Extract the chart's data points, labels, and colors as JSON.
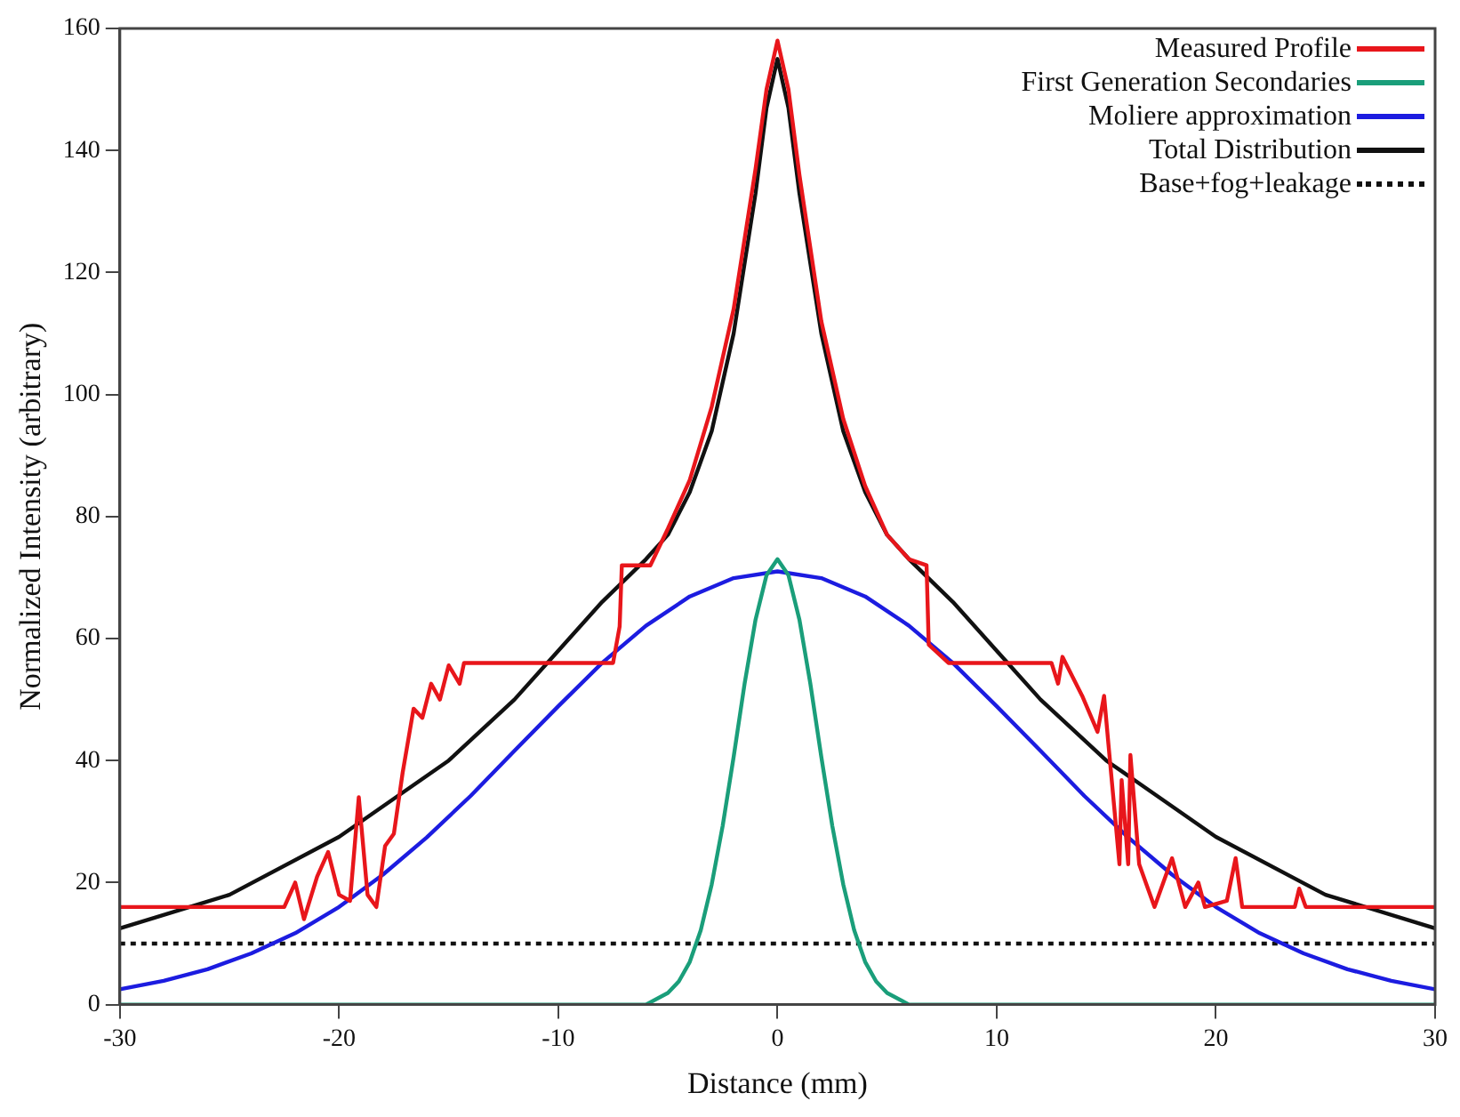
{
  "chart_data": {
    "type": "line",
    "xlabel": "Distance (mm)",
    "ylabel": "Normalized Intensity (arbitrary)",
    "xlim": [
      -30,
      30
    ],
    "xticks": [
      -30,
      -20,
      -10,
      0,
      10,
      20,
      30
    ],
    "ylim": [
      0,
      160
    ],
    "yticks": [
      0,
      20,
      40,
      60,
      80,
      100,
      120,
      140,
      160
    ],
    "grid": false,
    "legend": "top right",
    "marker": "none",
    "series": [
      {
        "name": "Measured Profile",
        "color": "#e8161b",
        "line_style": "solid",
        "x": [
          -30,
          -22.5,
          -22,
          -21.6,
          -21,
          -20.5,
          -20,
          -19.5,
          -19.1,
          -18.7,
          -18.3,
          -17.9,
          -17.5,
          -17.1,
          -16.6,
          -16.2,
          -15.8,
          -15.4,
          -15,
          -14.5,
          -14.3,
          -7.5,
          -7.2,
          -7.1,
          -5.8,
          -5,
          -4,
          -3,
          -2,
          -1,
          -0.5,
          0,
          0.5,
          1,
          2,
          3,
          4,
          5,
          6,
          6.8,
          6.9,
          7.8,
          12.5,
          12.8,
          13,
          13.9,
          14.6,
          14.9,
          15.1,
          15.6,
          15.7,
          16,
          16.1,
          16.5,
          17.2,
          18,
          18.6,
          19.2,
          19.5,
          20.5,
          20.9,
          21.2,
          23.6,
          23.8,
          24.1,
          30
        ],
        "values": [
          16,
          16,
          20,
          14,
          21,
          25,
          18,
          17,
          34,
          18,
          16,
          26,
          28,
          38,
          48.5,
          47,
          52.6,
          50,
          55.6,
          52.6,
          56,
          56,
          62,
          72,
          72,
          78,
          86,
          98,
          114,
          137,
          150,
          158,
          150,
          136,
          112,
          96,
          85,
          77,
          73,
          72,
          59,
          56,
          56,
          52.6,
          57,
          50.6,
          44.7,
          50.6,
          42.6,
          23,
          36.8,
          23,
          40.9,
          23,
          16,
          24,
          16,
          20,
          16,
          17,
          24,
          16,
          16,
          19,
          16,
          16
        ]
      },
      {
        "name": "First Generation Secondaries",
        "color": "#1a9e7a",
        "line_style": "solid",
        "x": [
          -30,
          -6,
          -5,
          -4.5,
          -4,
          -3.5,
          -3,
          -2.5,
          -2,
          -1.5,
          -1,
          -0.5,
          0,
          0.5,
          1,
          1.5,
          2,
          2.5,
          3,
          3.5,
          4,
          4.5,
          5,
          6,
          30
        ],
        "values": [
          0,
          0,
          1.9,
          3.8,
          7,
          12.2,
          19.7,
          29.3,
          40.6,
          52.6,
          63.1,
          70.4,
          73,
          70.4,
          63.1,
          52.6,
          40.6,
          29.3,
          19.7,
          12.2,
          7,
          3.8,
          1.9,
          0,
          0
        ]
      },
      {
        "name": "Moliere approximation",
        "color": "#1c1ce0",
        "line_style": "solid",
        "x": [
          -30,
          -28,
          -26,
          -24,
          -22,
          -20,
          -18,
          -16,
          -14,
          -12,
          -10,
          -8,
          -6,
          -4,
          -2,
          0,
          2,
          4,
          6,
          8,
          10,
          12,
          14,
          16,
          18,
          20,
          22,
          24,
          26,
          28,
          30
        ],
        "values": [
          2.5,
          3.9,
          5.8,
          8.4,
          11.7,
          16,
          21.3,
          27.4,
          34.2,
          41.6,
          48.9,
          56,
          62.1,
          66.9,
          69.9,
          71,
          69.9,
          66.9,
          62.1,
          56,
          48.9,
          41.6,
          34.2,
          27.4,
          21.3,
          16,
          11.7,
          8.4,
          5.8,
          3.9,
          2.5
        ]
      },
      {
        "name": "Total Distribution",
        "color": "#111111",
        "line_style": "solid",
        "x": [
          -30,
          -25,
          -20,
          -15,
          -12,
          -10,
          -8,
          -6,
          -5,
          -4,
          -3,
          -2,
          -1,
          -0.5,
          0,
          0.5,
          1,
          2,
          3,
          4,
          5,
          6,
          8,
          10,
          12,
          15,
          20,
          25,
          30
        ],
        "values": [
          12.5,
          18,
          27.5,
          40,
          50,
          58,
          66,
          73,
          77,
          84,
          94,
          110,
          133,
          147,
          155,
          147,
          133,
          110,
          94,
          84,
          77,
          73,
          66,
          58,
          50,
          40,
          27.5,
          18,
          12.5
        ]
      },
      {
        "name": "Base+fog+leakage",
        "color": "#111111",
        "line_style": "dotted",
        "x": [
          -30,
          30
        ],
        "values": [
          10,
          10
        ]
      }
    ]
  }
}
